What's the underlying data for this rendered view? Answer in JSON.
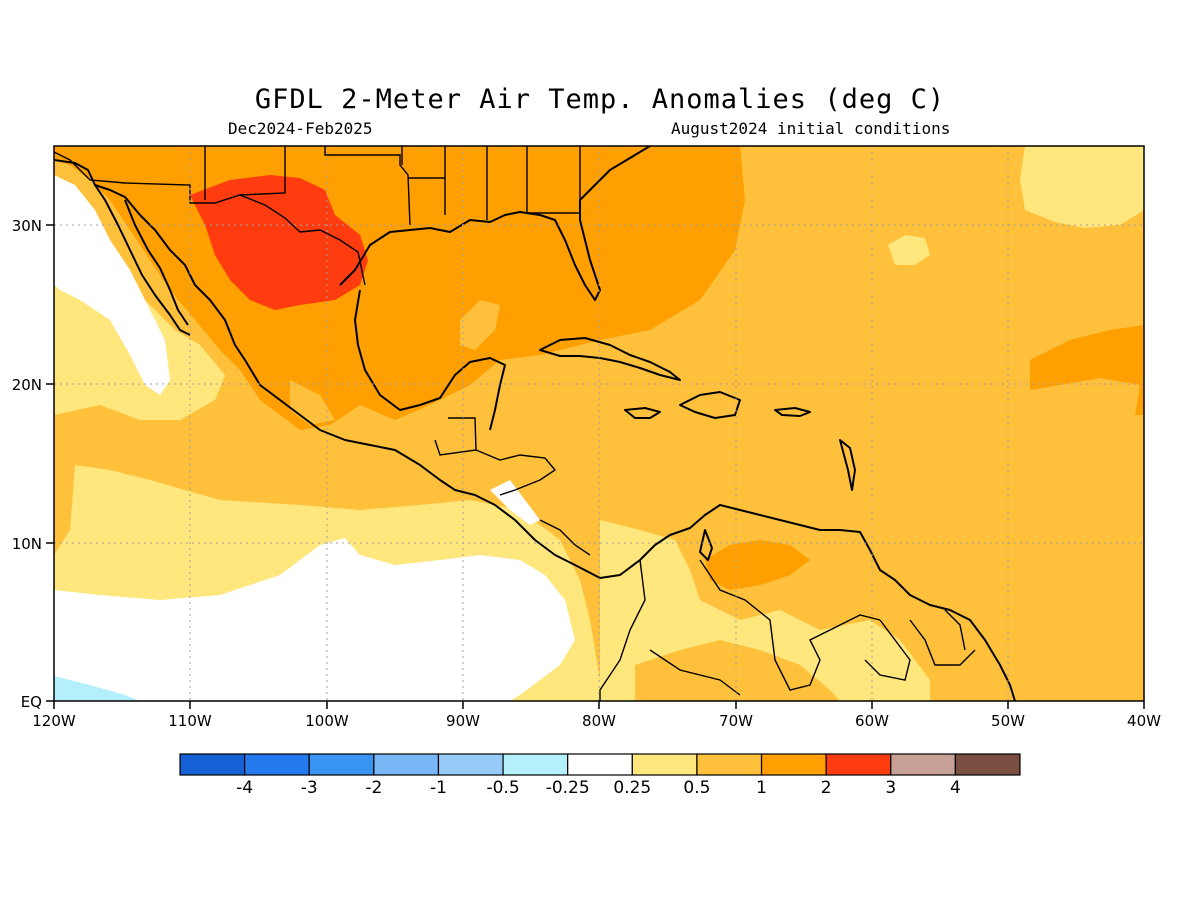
{
  "title": "GFDL 2-Meter Air Temp. Anomalies (deg C)",
  "subtitle_left": "Dec2024-Feb2025",
  "subtitle_right": "August2024 initial conditions",
  "x_axis": {
    "ticks": [
      "120W",
      "110W",
      "100W",
      "90W",
      "80W",
      "70W",
      "60W",
      "50W",
      "40W"
    ],
    "lon_values": [
      -120,
      -110,
      -100,
      -90,
      -80,
      -70,
      -60,
      -50,
      -40
    ]
  },
  "y_axis": {
    "ticks": [
      "EQ",
      "10N",
      "20N",
      "30N"
    ],
    "lat_values": [
      0,
      10,
      20,
      30
    ]
  },
  "extent": {
    "lon_min": -120,
    "lon_max": -40,
    "lat_min": 0,
    "lat_max": 35
  },
  "colorbar": {
    "colors": [
      "#1560d4",
      "#2479ec",
      "#3a94f2",
      "#78b6f5",
      "#97cbf7",
      "#b4f0fc",
      "#ffffff",
      "#ffe67d",
      "#ffc13c",
      "#ff9f00",
      "#ff3c0f",
      "#c8a096",
      "#7b4e42"
    ],
    "labels": [
      "-4",
      "-3",
      "-2",
      "-1",
      "-0.5",
      "-0.25",
      "0.25",
      "0.5",
      "1",
      "2",
      "3",
      "4"
    ]
  },
  "anomaly_classes": {
    "near_zero": "#ffffff",
    "c_0_25_to_0_5": "#ffe67d",
    "c_0_5_to_1": "#ffc13c",
    "c_1_to_2": "#ff9f00",
    "c_2_to_3": "#ff3c0f",
    "c_neg_0_5_to_neg_0_25": "#b4f0fc"
  }
}
